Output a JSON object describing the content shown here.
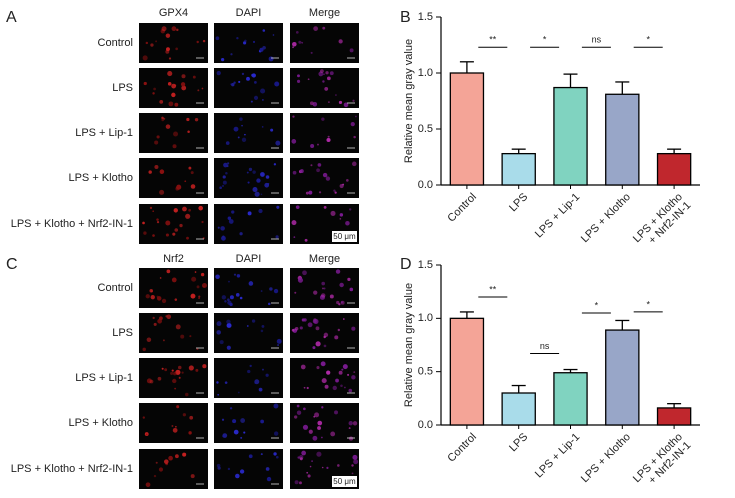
{
  "micrographs": [
    {
      "label": "A",
      "channels": [
        "GPX4",
        "DAPI",
        "Merge"
      ],
      "rows": [
        "Control",
        "LPS",
        "LPS + Lip-1",
        "LPS + Klotho",
        "LPS + Klotho + Nrf2-IN-1"
      ],
      "scale_bar": "50 μm"
    },
    {
      "label": "C",
      "channels": [
        "Nrf2",
        "DAPI",
        "Merge"
      ],
      "rows": [
        "Control",
        "LPS",
        "LPS + Lip-1",
        "LPS + Klotho",
        "LPS + Klotho + Nrf2-IN-1"
      ],
      "scale_bar": "50 μm"
    }
  ],
  "chart_data": [
    {
      "type": "bar",
      "label": "B",
      "y_label": "Relative mean gray value",
      "categories": [
        "Control",
        "LPS",
        "LPS + Lip-1",
        "LPS + Klotho",
        "LPS + Klotho\n+ Nrf2-IN-1"
      ],
      "values": [
        1.0,
        0.28,
        0.87,
        0.81,
        0.28
      ],
      "errors": [
        0.1,
        0.04,
        0.12,
        0.11,
        0.04
      ],
      "colors": [
        "#f4a497",
        "#a9dcea",
        "#80d3c0",
        "#98a6c8",
        "#c0272d"
      ],
      "ylim": [
        0,
        1.5
      ],
      "yticks": [
        {
          "value": 0,
          "label": "0.0"
        },
        {
          "value": 0.5,
          "label": "0.5"
        },
        {
          "value": 1.0,
          "label": "1.0"
        },
        {
          "value": 1.5,
          "label": "1.5"
        }
      ],
      "significance": [
        {
          "from": 0,
          "to": 1,
          "y": 1.23,
          "label": "**"
        },
        {
          "from": 1,
          "to": 2,
          "y": 1.23,
          "label": "*"
        },
        {
          "from": 2,
          "to": 3,
          "y": 1.23,
          "label": "ns"
        },
        {
          "from": 3,
          "to": 4,
          "y": 1.23,
          "label": "*"
        }
      ]
    },
    {
      "type": "bar",
      "label": "D",
      "y_label": "Relative mean gray value",
      "categories": [
        "Control",
        "LPS",
        "LPS + Lip-1",
        "LPS + Klotho",
        "LPS + Klotho\n+ Nrf2-IN-1"
      ],
      "values": [
        1.0,
        0.3,
        0.49,
        0.89,
        0.16
      ],
      "errors": [
        0.06,
        0.07,
        0.03,
        0.09,
        0.04
      ],
      "colors": [
        "#f4a497",
        "#a9dcea",
        "#80d3c0",
        "#98a6c8",
        "#c0272d"
      ],
      "ylim": [
        0,
        1.5
      ],
      "yticks": [
        {
          "value": 0,
          "label": "0.0"
        },
        {
          "value": 0.5,
          "label": "0.5"
        },
        {
          "value": 1.0,
          "label": "1.0"
        },
        {
          "value": 1.5,
          "label": "1.5"
        }
      ],
      "significance": [
        {
          "from": 0,
          "to": 1,
          "y": 1.2,
          "label": "**"
        },
        {
          "from": 1,
          "to": 2,
          "y": 0.67,
          "label": "ns"
        },
        {
          "from": 2,
          "to": 3,
          "y": 1.05,
          "label": "*"
        },
        {
          "from": 3,
          "to": 4,
          "y": 1.06,
          "label": "*"
        }
      ]
    }
  ]
}
